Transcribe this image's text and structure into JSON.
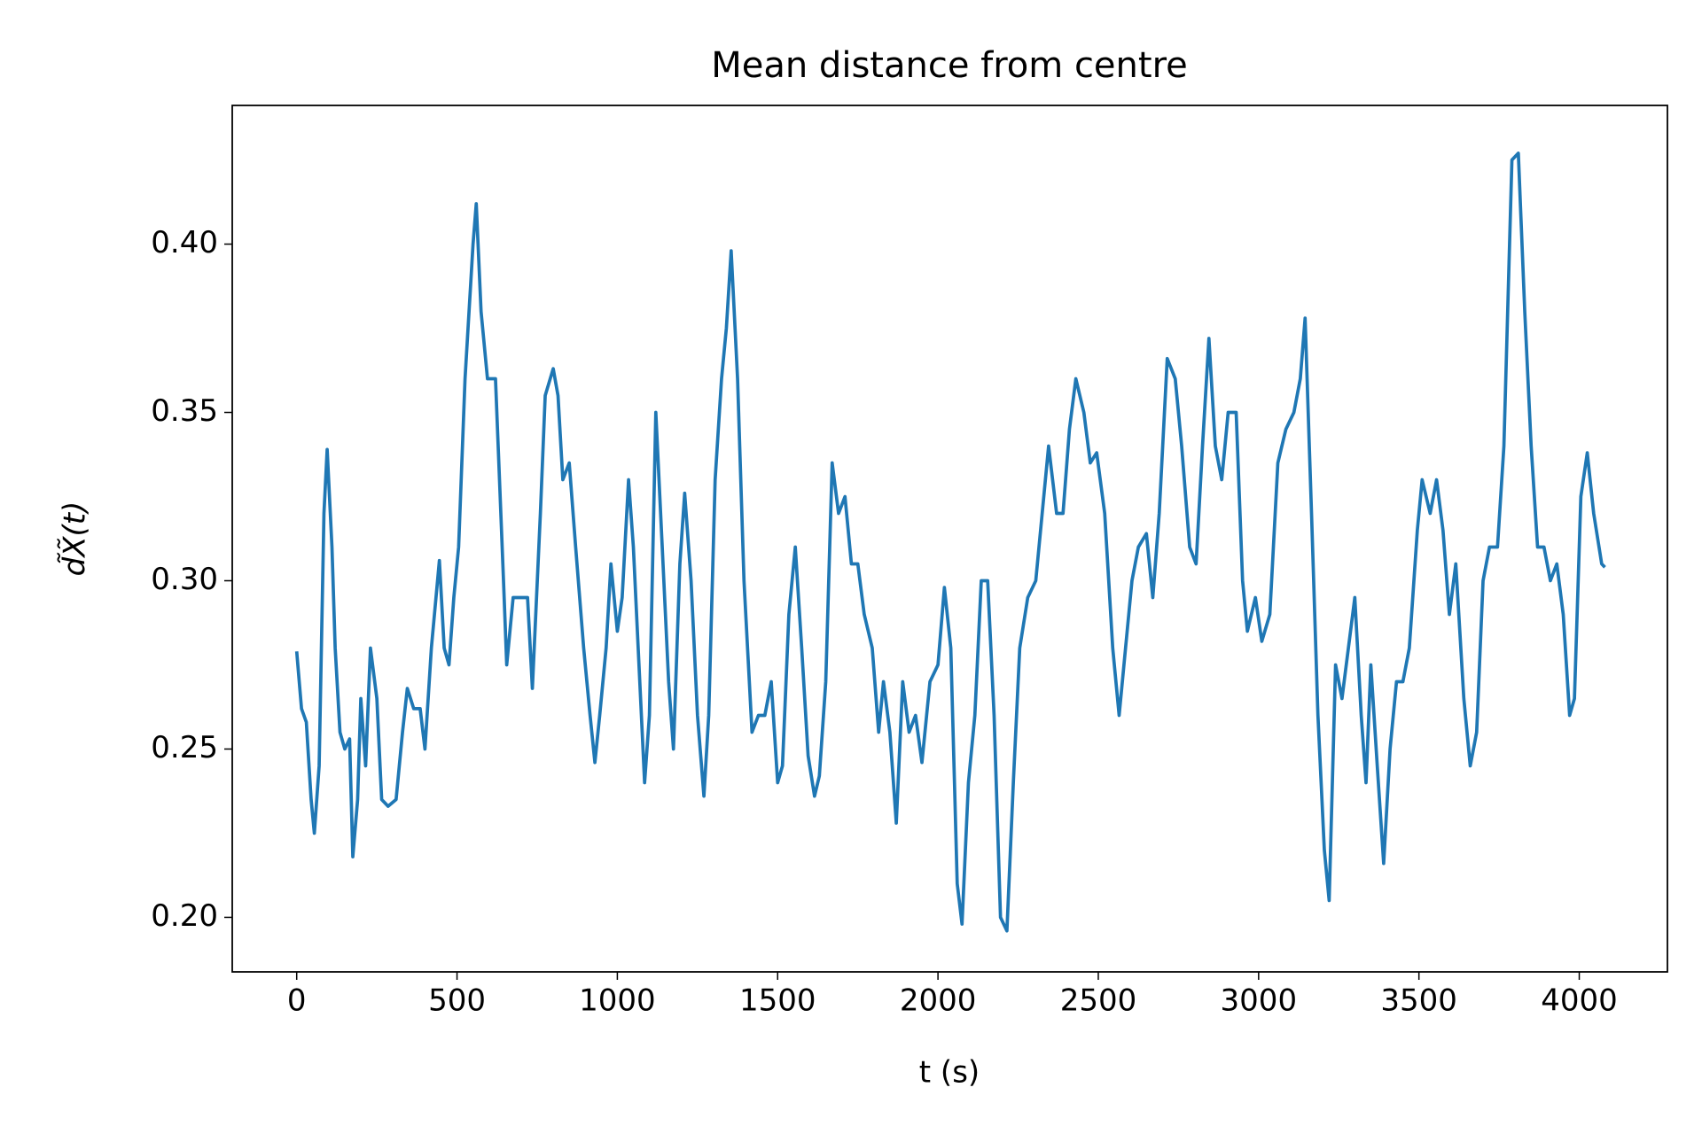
{
  "chart_data": {
    "type": "line",
    "title": "Mean distance from centre",
    "xlabel": "t (s)",
    "ylabel": "d̃X̃(t)",
    "color": "#1f77b4",
    "x": [
      0,
      15,
      30,
      45,
      55,
      70,
      85,
      95,
      110,
      120,
      135,
      150,
      165,
      175,
      190,
      200,
      215,
      230,
      250,
      265,
      285,
      310,
      330,
      345,
      365,
      385,
      400,
      420,
      445,
      460,
      475,
      490,
      505,
      525,
      550,
      560,
      575,
      595,
      620,
      645,
      655,
      675,
      700,
      720,
      735,
      760,
      775,
      800,
      815,
      830,
      850,
      870,
      895,
      915,
      930,
      945,
      965,
      980,
      1000,
      1015,
      1035,
      1050,
      1070,
      1085,
      1100,
      1120,
      1140,
      1160,
      1175,
      1195,
      1210,
      1230,
      1250,
      1270,
      1285,
      1305,
      1325,
      1340,
      1355,
      1375,
      1395,
      1420,
      1440,
      1460,
      1480,
      1500,
      1515,
      1535,
      1555,
      1575,
      1595,
      1615,
      1630,
      1650,
      1670,
      1690,
      1710,
      1730,
      1750,
      1770,
      1795,
      1815,
      1830,
      1850,
      1870,
      1890,
      1910,
      1930,
      1950,
      1975,
      2000,
      2020,
      2040,
      2060,
      2075,
      2095,
      2115,
      2135,
      2155,
      2175,
      2195,
      2215,
      2235,
      2255,
      2280,
      2305,
      2325,
      2345,
      2370,
      2390,
      2410,
      2430,
      2455,
      2475,
      2495,
      2520,
      2545,
      2565,
      2585,
      2605,
      2625,
      2650,
      2670,
      2690,
      2715,
      2740,
      2760,
      2785,
      2805,
      2825,
      2845,
      2865,
      2885,
      2905,
      2930,
      2950,
      2965,
      2990,
      3010,
      3035,
      3060,
      3085,
      3110,
      3130,
      3145,
      3165,
      3185,
      3205,
      3220,
      3240,
      3260,
      3280,
      3300,
      3320,
      3335,
      3350,
      3370,
      3390,
      3410,
      3430,
      3450,
      3470,
      3495,
      3510,
      3535,
      3555,
      3575,
      3595,
      3615,
      3640,
      3660,
      3680,
      3700,
      3720,
      3745,
      3765,
      3790,
      3810,
      3830,
      3850,
      3870,
      3890,
      3910,
      3930,
      3950,
      3970,
      3985,
      4005,
      4025,
      4045,
      4070,
      4080
    ],
    "values": [
      0.279,
      0.262,
      0.258,
      0.235,
      0.225,
      0.245,
      0.32,
      0.339,
      0.31,
      0.28,
      0.255,
      0.25,
      0.253,
      0.218,
      0.235,
      0.265,
      0.245,
      0.28,
      0.265,
      0.235,
      0.233,
      0.235,
      0.255,
      0.268,
      0.262,
      0.262,
      0.25,
      0.28,
      0.306,
      0.28,
      0.275,
      0.295,
      0.31,
      0.36,
      0.4,
      0.412,
      0.38,
      0.36,
      0.36,
      0.3,
      0.275,
      0.295,
      0.295,
      0.295,
      0.268,
      0.32,
      0.355,
      0.363,
      0.355,
      0.33,
      0.335,
      0.31,
      0.28,
      0.26,
      0.246,
      0.26,
      0.28,
      0.305,
      0.285,
      0.295,
      0.33,
      0.31,
      0.27,
      0.24,
      0.26,
      0.35,
      0.31,
      0.27,
      0.25,
      0.305,
      0.326,
      0.3,
      0.26,
      0.236,
      0.26,
      0.33,
      0.36,
      0.375,
      0.398,
      0.36,
      0.3,
      0.255,
      0.26,
      0.26,
      0.27,
      0.24,
      0.245,
      0.29,
      0.31,
      0.28,
      0.248,
      0.236,
      0.242,
      0.27,
      0.335,
      0.32,
      0.325,
      0.305,
      0.305,
      0.29,
      0.28,
      0.255,
      0.27,
      0.255,
      0.228,
      0.27,
      0.255,
      0.26,
      0.246,
      0.27,
      0.275,
      0.298,
      0.28,
      0.21,
      0.198,
      0.24,
      0.26,
      0.3,
      0.3,
      0.26,
      0.2,
      0.196,
      0.24,
      0.28,
      0.295,
      0.3,
      0.32,
      0.34,
      0.32,
      0.32,
      0.345,
      0.36,
      0.35,
      0.335,
      0.338,
      0.32,
      0.28,
      0.26,
      0.28,
      0.3,
      0.31,
      0.314,
      0.295,
      0.32,
      0.366,
      0.36,
      0.34,
      0.31,
      0.305,
      0.34,
      0.372,
      0.34,
      0.33,
      0.35,
      0.35,
      0.3,
      0.285,
      0.295,
      0.282,
      0.29,
      0.335,
      0.345,
      0.35,
      0.36,
      0.378,
      0.32,
      0.26,
      0.22,
      0.205,
      0.275,
      0.265,
      0.28,
      0.295,
      0.26,
      0.24,
      0.275,
      0.245,
      0.216,
      0.25,
      0.27,
      0.27,
      0.28,
      0.315,
      0.33,
      0.32,
      0.33,
      0.315,
      0.29,
      0.305,
      0.265,
      0.245,
      0.255,
      0.3,
      0.31,
      0.31,
      0.34,
      0.425,
      0.427,
      0.38,
      0.34,
      0.31,
      0.31,
      0.3,
      0.305,
      0.29,
      0.26,
      0.265,
      0.325,
      0.338,
      0.32,
      0.305,
      0.304
    ],
    "xlim": [
      -201,
      4275
    ],
    "ylim": [
      0.1838,
      0.4412
    ],
    "xticks": [
      0,
      500,
      1000,
      1500,
      2000,
      2500,
      3000,
      3500,
      4000
    ],
    "yticks": [
      {
        "value": 0.2,
        "label": "0.20"
      },
      {
        "value": 0.25,
        "label": "0.25"
      },
      {
        "value": 0.3,
        "label": "0.30"
      },
      {
        "value": 0.35,
        "label": "0.35"
      },
      {
        "value": 0.4,
        "label": "0.40"
      }
    ]
  }
}
